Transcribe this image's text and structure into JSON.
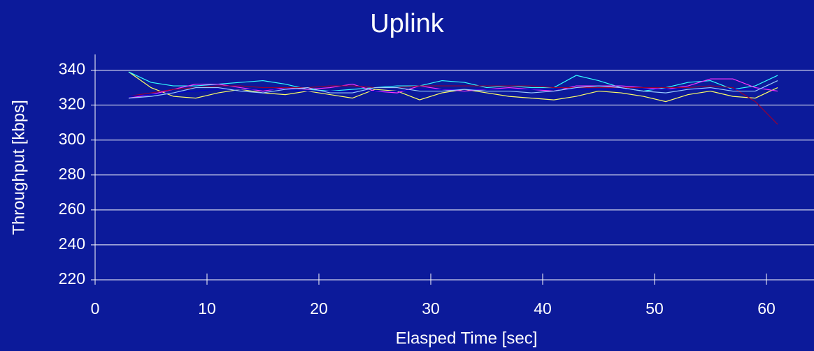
{
  "chart_data": {
    "type": "line",
    "title": "Uplink",
    "x_label": "Elasped Time [sec]",
    "y_label": "Throughput [kbps]",
    "x": [
      3,
      5,
      7,
      9,
      11,
      13,
      15,
      17,
      19,
      21,
      23,
      25,
      27,
      29,
      31,
      33,
      35,
      37,
      39,
      41,
      43,
      45,
      47,
      49,
      51,
      53,
      55,
      57,
      59,
      61
    ],
    "series": [
      {
        "color": "#ffff66",
        "values": [
          339,
          330,
          325,
          324,
          327,
          329,
          327,
          326,
          328,
          326,
          324,
          329,
          328,
          323,
          327,
          329,
          327,
          325,
          324,
          323,
          325,
          328,
          327,
          325,
          322,
          326,
          328,
          325,
          324,
          330
        ]
      },
      {
        "color": "#33ffff",
        "values": [
          339,
          333,
          331,
          331,
          332,
          333,
          334,
          332,
          329,
          328,
          329,
          330,
          331,
          331,
          334,
          333,
          330,
          331,
          330,
          330,
          337,
          334,
          330,
          328,
          330,
          333,
          334,
          329,
          331,
          337
        ]
      },
      {
        "color": "#ff33ff",
        "values": [
          324,
          326,
          329,
          332,
          332,
          330,
          328,
          330,
          329,
          330,
          332,
          328,
          327,
          331,
          329,
          328,
          329,
          330,
          329,
          328,
          331,
          331,
          331,
          330,
          329,
          331,
          335,
          335,
          330,
          328
        ]
      },
      {
        "color": "#990033",
        "values": [
          325,
          327,
          329,
          330,
          331,
          331,
          330,
          330,
          330,
          331,
          331,
          330,
          330,
          331,
          331,
          331,
          331,
          331,
          331,
          330,
          330,
          330,
          330,
          330,
          330,
          330,
          331,
          330,
          322,
          309
        ]
      },
      {
        "color": "#0000cc",
        "values": [
          325,
          326,
          327,
          328,
          329,
          329,
          329,
          329,
          328,
          328,
          328,
          328,
          328,
          329,
          329,
          329,
          329,
          329,
          329,
          329,
          329,
          329,
          329,
          329,
          329,
          329,
          329,
          329,
          329,
          331
        ]
      },
      {
        "color": "#99ccff",
        "values": [
          324,
          325,
          327,
          330,
          330,
          328,
          327,
          329,
          330,
          327,
          327,
          330,
          330,
          328,
          328,
          329,
          328,
          328,
          327,
          328,
          330,
          331,
          330,
          328,
          327,
          329,
          330,
          328,
          328,
          334
        ]
      }
    ],
    "xlim": [
      0,
      64.25
    ],
    "ylim": [
      220,
      349
    ],
    "xticks": [
      0,
      10,
      20,
      30,
      40,
      50,
      60
    ],
    "yticks": [
      220,
      240,
      260,
      280,
      300,
      320,
      340
    ],
    "grid": true
  }
}
